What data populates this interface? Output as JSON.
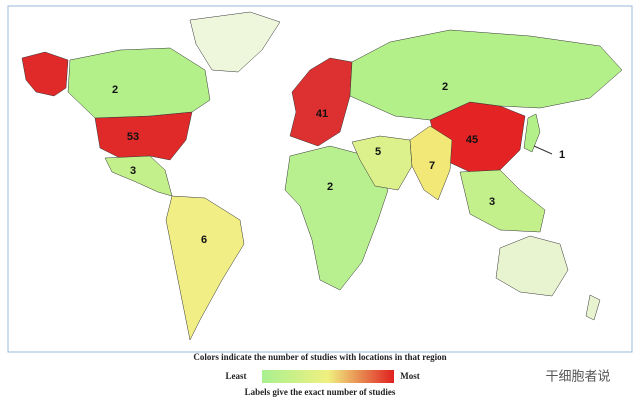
{
  "legend": {
    "title": "Colors indicate the number of studies with locations in that region",
    "low": "Least",
    "high": "Most",
    "note": "Labels give the exact number of studies"
  },
  "regions": [
    {
      "count": 53,
      "color": "#e02a2a"
    },
    {
      "count": 41,
      "color": "#dd3030"
    },
    {
      "count": 45,
      "color": "#e42424"
    },
    {
      "count": 2,
      "color": "#b4f08a"
    },
    {
      "count": 2,
      "color": "#b4f08a"
    },
    {
      "count": 2,
      "color": "#b8f090"
    },
    {
      "count": 3,
      "color": "#c4f08c"
    },
    {
      "count": 5,
      "color": "#dcf08c"
    },
    {
      "count": 7,
      "color": "#f2e878"
    },
    {
      "count": 3,
      "color": "#c4f08c"
    },
    {
      "count": 6,
      "color": "#f2ee86"
    },
    {
      "count": 1,
      "color": "#b4f08a"
    }
  ],
  "watermark": "干细胞者说"
}
